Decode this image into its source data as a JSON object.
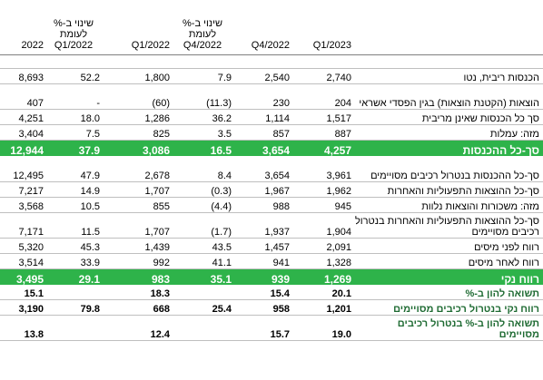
{
  "headers": {
    "y2022": "2022",
    "chg_q1_2022": "שינוי ב-% לעומת Q1/2022",
    "q1_2022": "Q1/2022",
    "chg_q4_2022": "שינוי ב-% לעומת Q4/2022",
    "q4_2022": "Q4/2022",
    "q1_2023": "Q1/2023",
    "label": ""
  },
  "rows": [
    {
      "label": "הכנסות ריבית, נטו",
      "q1_2023": "2,740",
      "q4_2022": "2,540",
      "chg_q4": "7.9",
      "q1_2022": "1,800",
      "chg_q1": "52.2",
      "y2022": "8,693"
    },
    {
      "label": "הוצאות (הקטנת הוצאות) בגין הפסדי אשראי",
      "q1_2023": "204",
      "q4_2022": "230",
      "chg_q4": "(11.3)",
      "q1_2022": "(60)",
      "chg_q1": "-",
      "y2022": "407"
    },
    {
      "label": "סך כל הכנסות שאינן מריבית",
      "q1_2023": "1,517",
      "q4_2022": "1,114",
      "chg_q4": "36.2",
      "q1_2022": "1,286",
      "chg_q1": "18.0",
      "y2022": "4,251"
    },
    {
      "label": "מזה: עמלות",
      "q1_2023": "887",
      "q4_2022": "857",
      "chg_q4": "3.5",
      "q1_2022": "825",
      "chg_q1": "7.5",
      "y2022": "3,404"
    },
    {
      "label": "סך-כל ההכנסות",
      "q1_2023": "4,257",
      "q4_2022": "3,654",
      "chg_q4": "16.5",
      "q1_2022": "3,086",
      "chg_q1": "37.9",
      "y2022": "12,944"
    },
    {
      "label": "סך-כל ההכנסות בנטרול רכיבים מסויימים",
      "q1_2023": "3,961",
      "q4_2022": "3,654",
      "chg_q4": "8.4",
      "q1_2022": "2,678",
      "chg_q1": "47.9",
      "y2022": "12,495"
    },
    {
      "label": "סך-כל ההוצאות התפעוליות והאחרות",
      "q1_2023": "1,962",
      "q4_2022": "1,967",
      "chg_q4": "(0.3)",
      "q1_2022": "1,707",
      "chg_q1": "14.9",
      "y2022": "7,217"
    },
    {
      "label": "מזה: משכורות והוצאות נלוות",
      "q1_2023": "945",
      "q4_2022": "988",
      "chg_q4": "(4.4)",
      "q1_2022": "855",
      "chg_q1": "10.5",
      "y2022": "3,568"
    },
    {
      "label": "סך-כל ההוצאות התפעוליות והאחרות בנטרול רכיבים מסויימים",
      "q1_2023": "1,904",
      "q4_2022": "1,937",
      "chg_q4": "(1.7)",
      "q1_2022": "1,707",
      "chg_q1": "11.5",
      "y2022": "7,171"
    },
    {
      "label": "רווח לפני מיסים",
      "q1_2023": "2,091",
      "q4_2022": "1,457",
      "chg_q4": "43.5",
      "q1_2022": "1,439",
      "chg_q1": "45.3",
      "y2022": "5,320"
    },
    {
      "label": "רווח לאחר מיסים",
      "q1_2023": "1,328",
      "q4_2022": "941",
      "chg_q4": "41.1",
      "q1_2022": "992",
      "chg_q1": "33.9",
      "y2022": "3,514"
    },
    {
      "label": "רווח נקי",
      "q1_2023": "1,269",
      "q4_2022": "939",
      "chg_q4": "35.1",
      "q1_2022": "983",
      "chg_q1": "29.1",
      "y2022": "3,495"
    },
    {
      "label": "תשואה להון ב-%",
      "q1_2023": "20.1",
      "q4_2022": "15.4",
      "chg_q4": "",
      "q1_2022": "18.3",
      "chg_q1": "",
      "y2022": "15.1"
    },
    {
      "label": "רווח נקי בנטרול רכיבים מסויימים",
      "q1_2023": "1,201",
      "q4_2022": "958",
      "chg_q4": "25.4",
      "q1_2022": "668",
      "chg_q1": "79.8",
      "y2022": "3,190"
    },
    {
      "label": "תשואה להון ב-% בנטרול רכיבים מסויימים",
      "q1_2023": "19.0",
      "q4_2022": "15.7",
      "chg_q4": "",
      "q1_2022": "12.4",
      "chg_q1": "",
      "y2022": "13.8"
    }
  ],
  "colors": {
    "highlight": "#2eb34a",
    "bold_label": "#1f6b33"
  }
}
